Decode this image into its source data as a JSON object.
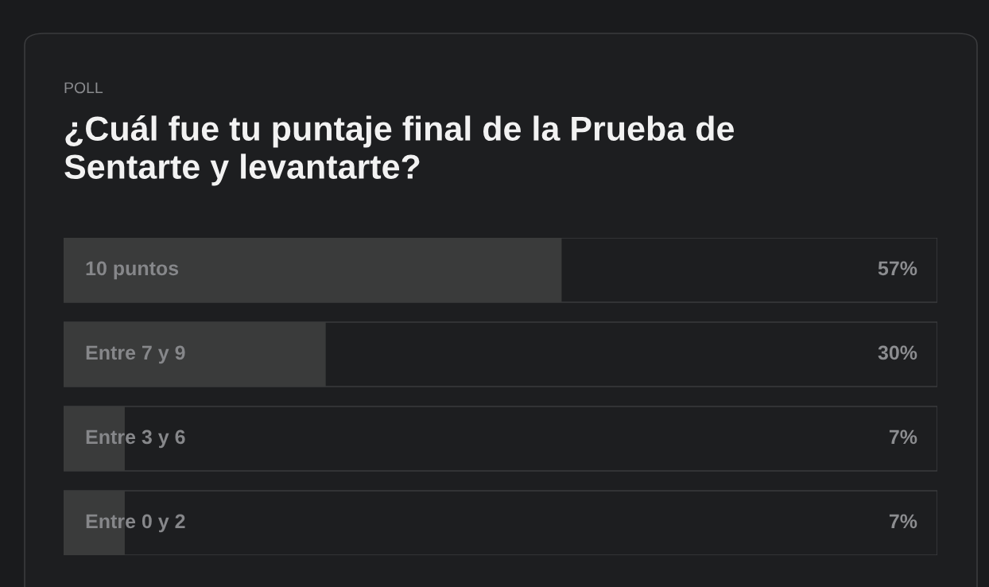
{
  "chart_data": {
    "type": "bar",
    "orientation": "horizontal",
    "subtitle": "POLL",
    "title": "¿Cuál fue tu puntaje final de la Prueba de Sentarte y levantarte?",
    "categories": [
      "10 puntos",
      "Entre 7 y 9",
      "Entre 3 y 6",
      "Entre 0 y 2"
    ],
    "values": [
      57,
      30,
      7,
      7
    ],
    "value_labels": [
      "57%",
      "30%",
      "7%",
      "7%"
    ],
    "color": "#3a3b3b",
    "xlim": [
      0,
      100
    ]
  }
}
